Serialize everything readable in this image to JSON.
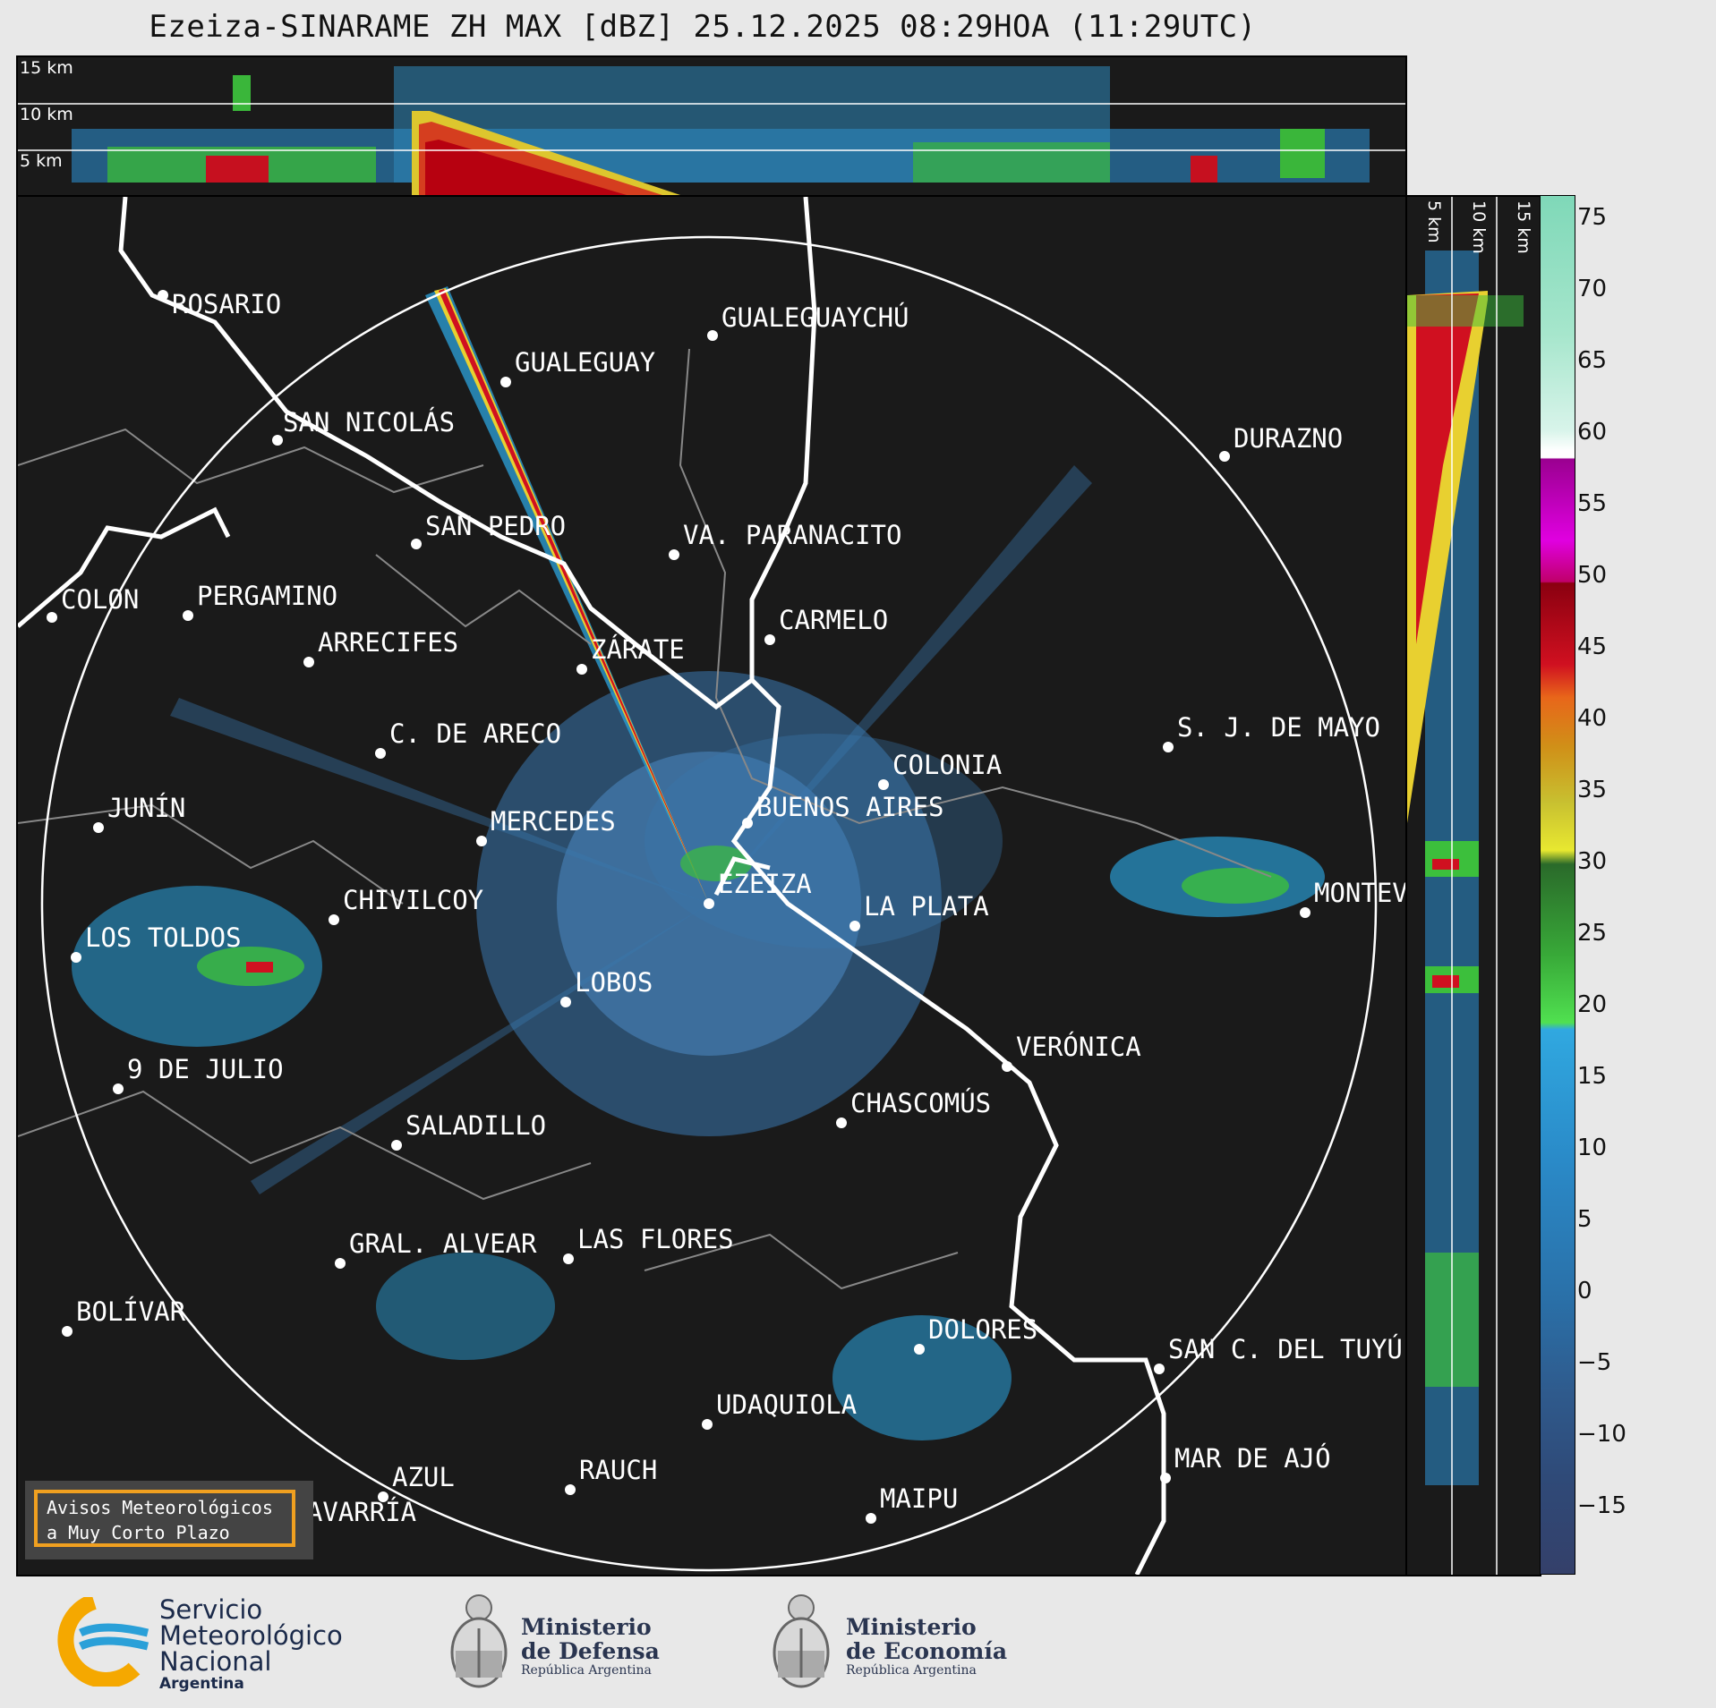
{
  "title": "Ezeiza-SINARAME ZH MAX [dBZ] 25.12.2025 08:29HOA (11:29UTC)",
  "top_panel": {
    "km_labels": [
      "15 km",
      "10 km",
      "5 km"
    ]
  },
  "side_panel": {
    "km_labels": [
      "5 km",
      "10 km",
      "15 km"
    ]
  },
  "colorbar": {
    "unit": "dBZ",
    "ticks": [
      "75",
      "70",
      "65",
      "60",
      "55",
      "50",
      "45",
      "40",
      "35",
      "30",
      "25",
      "20",
      "15",
      "10",
      "5",
      "0",
      "−5",
      "−10",
      "−15"
    ]
  },
  "cities": [
    {
      "name": "ROSARIO"
    },
    {
      "name": "GUALEGUAYCHÚ"
    },
    {
      "name": "GUALEGUAY"
    },
    {
      "name": "SAN NICOLÁS"
    },
    {
      "name": "DURAZNO"
    },
    {
      "name": "SAN PEDRO"
    },
    {
      "name": "VA. PARANACITO"
    },
    {
      "name": "COLON"
    },
    {
      "name": "PERGAMINO"
    },
    {
      "name": "CARMELO"
    },
    {
      "name": "ARRECIFES"
    },
    {
      "name": "ZÁRATE"
    },
    {
      "name": "S. J. DE MAYO"
    },
    {
      "name": "C. DE ARECO"
    },
    {
      "name": "COLONIA"
    },
    {
      "name": "JUNÍN"
    },
    {
      "name": "BUENOS AIRES"
    },
    {
      "name": "MERCEDES"
    },
    {
      "name": "EZEIZA"
    },
    {
      "name": "MONTEVIDEO"
    },
    {
      "name": "CHIVILCOY"
    },
    {
      "name": "LA PLATA"
    },
    {
      "name": "LOS TOLDOS"
    },
    {
      "name": "LOBOS"
    },
    {
      "name": "VERÓNICA"
    },
    {
      "name": "9 DE JULIO"
    },
    {
      "name": "CHASCOMÚS"
    },
    {
      "name": "SALADILLO"
    },
    {
      "name": "GRAL. ALVEAR"
    },
    {
      "name": "LAS FLORES"
    },
    {
      "name": "BOLÍVAR"
    },
    {
      "name": "DOLORES"
    },
    {
      "name": "SAN C. DEL TUYÚ"
    },
    {
      "name": "UDAQUIOLA"
    },
    {
      "name": "MAR DE AJÓ"
    },
    {
      "name": "AZUL"
    },
    {
      "name": "RAUCH"
    },
    {
      "name": "OLAVARRÍA"
    },
    {
      "name": "MAIPU"
    }
  ],
  "aviso": {
    "line1": "Avisos Meteorológicos",
    "line2": "a Muy Corto Plazo"
  },
  "footer": {
    "smn": {
      "line1": "Servicio",
      "line2": "Meteorológico",
      "line3": "Nacional",
      "line4": "Argentina"
    },
    "defensa": {
      "line1": "Ministerio",
      "line2": "de Defensa",
      "line3": "República Argentina"
    },
    "economia": {
      "line1": "Ministerio",
      "line2": "de Economía",
      "line3": "República Argentina"
    }
  }
}
